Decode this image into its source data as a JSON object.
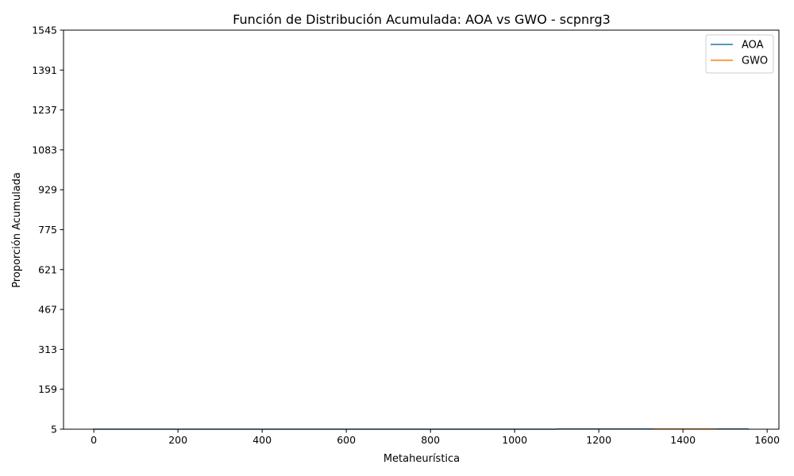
{
  "chart_data": {
    "type": "line",
    "title": "Función de Distribución Acumulada: AOA vs GWO - scpnrg3",
    "xlabel": "Metaheurística",
    "ylabel": "Proporción Acumulada",
    "xlim": [
      -72,
      1628
    ],
    "ylim": [
      5,
      1545
    ],
    "xticks": [
      0,
      200,
      400,
      600,
      800,
      1000,
      1200,
      1400,
      1600
    ],
    "xtick_labels": [
      "0",
      "200",
      "400",
      "600",
      "800",
      "1000",
      "1200",
      "1400",
      "1600"
    ],
    "yticks": [
      5,
      159,
      313,
      467,
      621,
      775,
      929,
      1083,
      1237,
      1391,
      1545
    ],
    "ytick_labels": [
      "5",
      "159",
      "313",
      "467",
      "621",
      "775",
      "929",
      "1083",
      "1237",
      "1391",
      "1545"
    ],
    "legend_position": "top-right",
    "grid": false,
    "series": [
      {
        "name": "AOA",
        "color": "#1f77b4",
        "x": [
          0,
          1100,
          1101,
          1555
        ],
        "y": [
          5,
          5,
          6,
          6
        ]
      },
      {
        "name": "GWO",
        "color": "#ff7f0e",
        "x": [
          1330,
          1480
        ],
        "y": [
          6,
          6
        ]
      }
    ]
  }
}
